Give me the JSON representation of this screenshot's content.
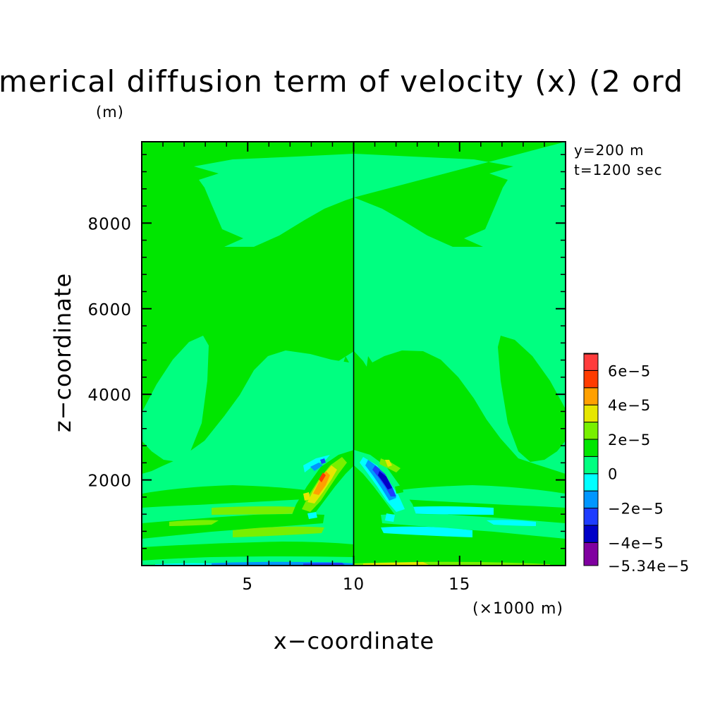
{
  "chart_data": {
    "type": "heatmap",
    "title": "merical diffusion term of velocity (x) (2 ord",
    "ylabel": "z−coordinate",
    "yunit": "(m)",
    "xlabel": "x−coordinate",
    "xunit": "(×1000 m)",
    "xlim": [
      0,
      20
    ],
    "ylim": [
      0,
      9900
    ],
    "xticks": [
      5,
      10,
      15
    ],
    "xtick_labels": [
      "5",
      "10",
      "15"
    ],
    "yticks": [
      2000,
      4000,
      6000,
      8000
    ],
    "ytick_labels": [
      "2000",
      "4000",
      "6000",
      "8000"
    ],
    "annotations": [
      "y=200 m",
      "t=1200 sec"
    ],
    "legend": {
      "position": "right",
      "levels": [
        -5.34e-05,
        -4e-05,
        -3e-05,
        -2e-05,
        -1e-05,
        0,
        1e-05,
        2e-05,
        3e-05,
        4e-05,
        5e-05,
        6e-05,
        7e-05
      ],
      "colors": [
        "#8000a0",
        "#0000c8",
        "#1e3cff",
        "#0096ff",
        "#00ffff",
        "#00ff80",
        "#00e600",
        "#78f000",
        "#e6e600",
        "#ffa000",
        "#ff3c00",
        "#ff3c3c",
        "#ff8c8c"
      ],
      "labels": [
        "−5.34e−5",
        "−4e−5",
        "−2e−5",
        "0",
        "2e−5",
        "4e−5",
        "6e−5"
      ],
      "label_values": [
        -5.34e-05,
        -4e-05,
        -2e-05,
        0,
        2e-05,
        4e-05,
        6e-05
      ]
    }
  }
}
